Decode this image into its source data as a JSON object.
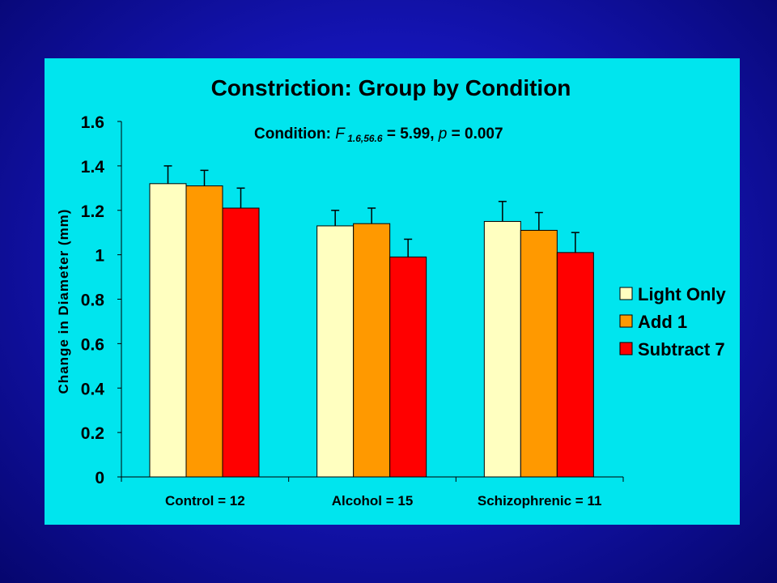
{
  "chart_data": {
    "type": "bar",
    "title": "Constriction: Group by Condition",
    "annotation": {
      "prefix": "Condition: ",
      "f": "F",
      "f_sub": " 1.6,56.6",
      "f_val": " = 5.99, ",
      "p": "p",
      "p_val": " = 0.007"
    },
    "ylabel": "Change in Diameter (mm)",
    "xlabel": "",
    "ylim": [
      0,
      1.6
    ],
    "yticks": [
      0,
      0.2,
      0.4,
      0.6,
      0.8,
      1,
      1.2,
      1.4,
      1.6
    ],
    "ytick_labels": [
      "0",
      "0.2",
      "0.4",
      "0.6",
      "0.8",
      "1",
      "1.2",
      "1.4",
      "1.6"
    ],
    "categories": [
      "Control = 12",
      "Alcohol = 15",
      "Schizophrenic = 11"
    ],
    "series": [
      {
        "name": "Light Only",
        "color": "#ffffc0",
        "values": [
          1.32,
          1.13,
          1.15
        ],
        "errors": [
          0.08,
          0.07,
          0.09
        ]
      },
      {
        "name": "Add 1",
        "color": "#ff9900",
        "values": [
          1.31,
          1.14,
          1.11
        ],
        "errors": [
          0.07,
          0.07,
          0.08
        ]
      },
      {
        "name": "Subtract 7",
        "color": "#ff0000",
        "values": [
          1.21,
          0.99,
          1.01
        ],
        "errors": [
          0.09,
          0.08,
          0.09
        ]
      }
    ],
    "legend_position": "right",
    "grid": false,
    "error_bars": true
  }
}
